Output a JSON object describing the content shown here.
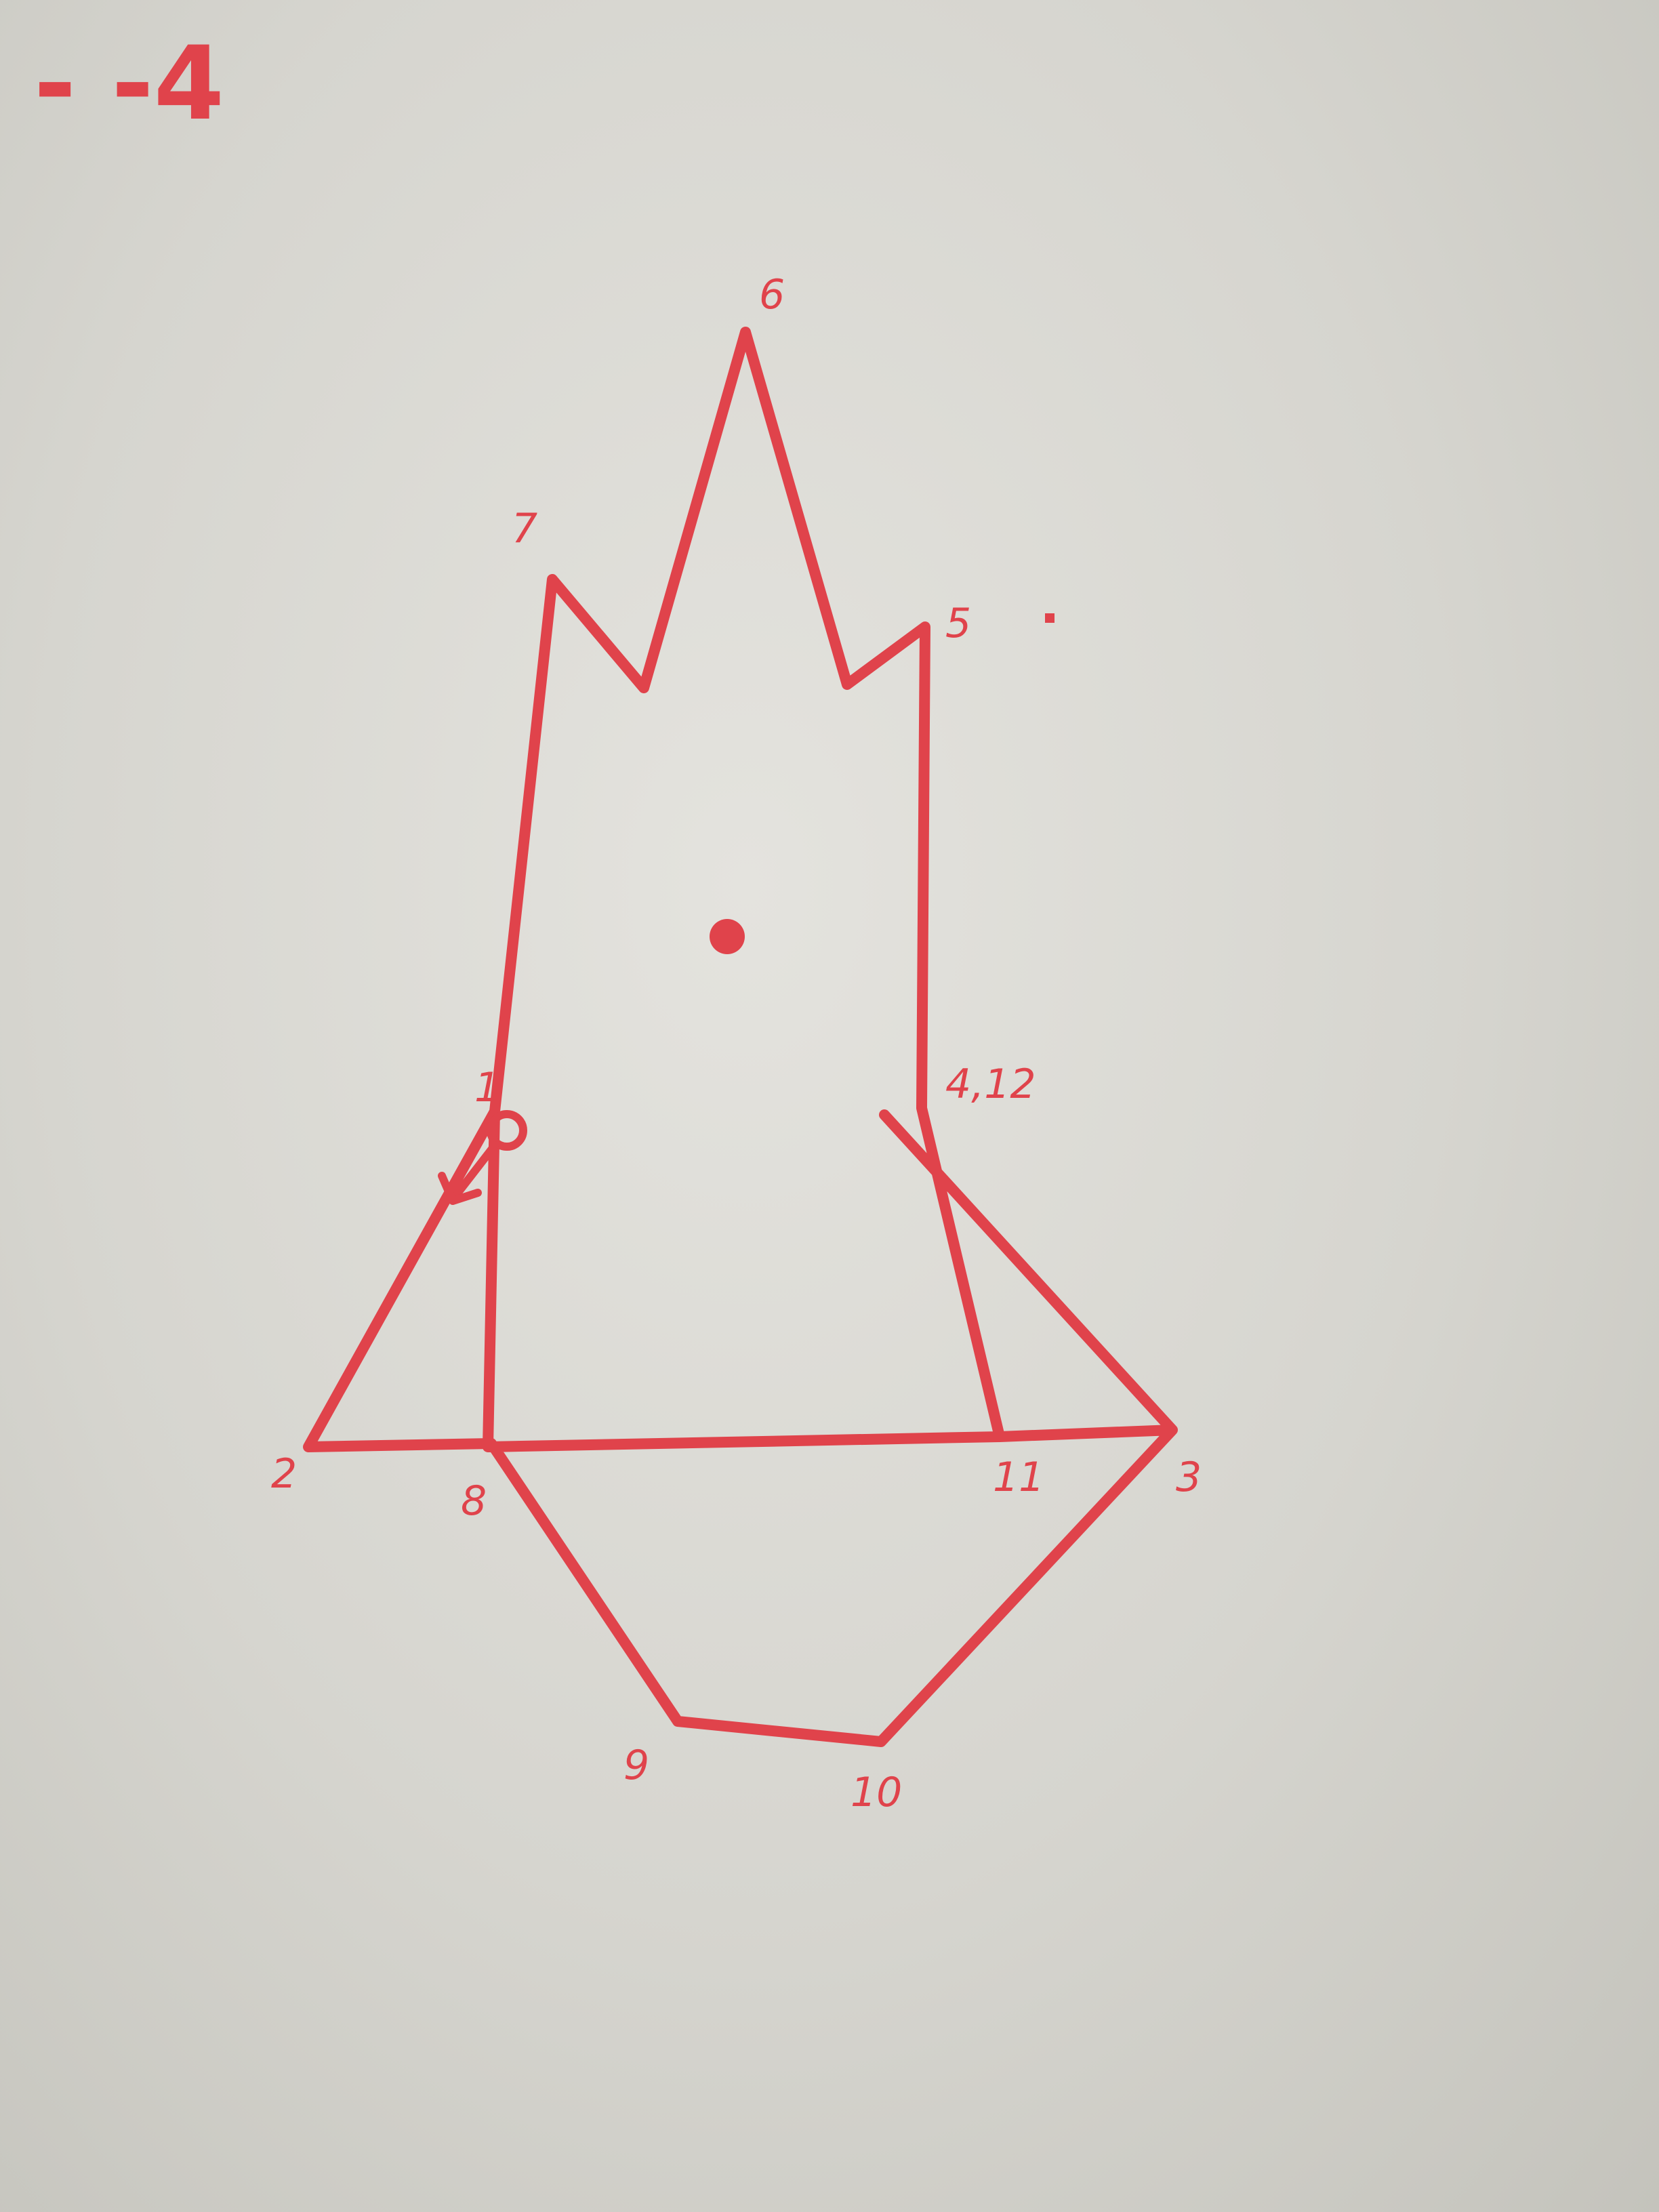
{
  "ink_color": "#e0434b",
  "corner_note": "- -4",
  "vertex_labels": [
    {
      "id": "1",
      "text": "1"
    },
    {
      "id": "2",
      "text": "2"
    },
    {
      "id": "3",
      "text": "3"
    },
    {
      "id": "4-12",
      "text": "4,12"
    },
    {
      "id": "5",
      "text": "5"
    },
    {
      "id": "6",
      "text": "6"
    },
    {
      "id": "7",
      "text": "7"
    },
    {
      "id": "8",
      "text": "8"
    },
    {
      "id": "9",
      "text": "9"
    },
    {
      "id": "10",
      "text": "10"
    },
    {
      "id": "11",
      "text": "11"
    }
  ],
  "origin_arrow": "start-arrow"
}
